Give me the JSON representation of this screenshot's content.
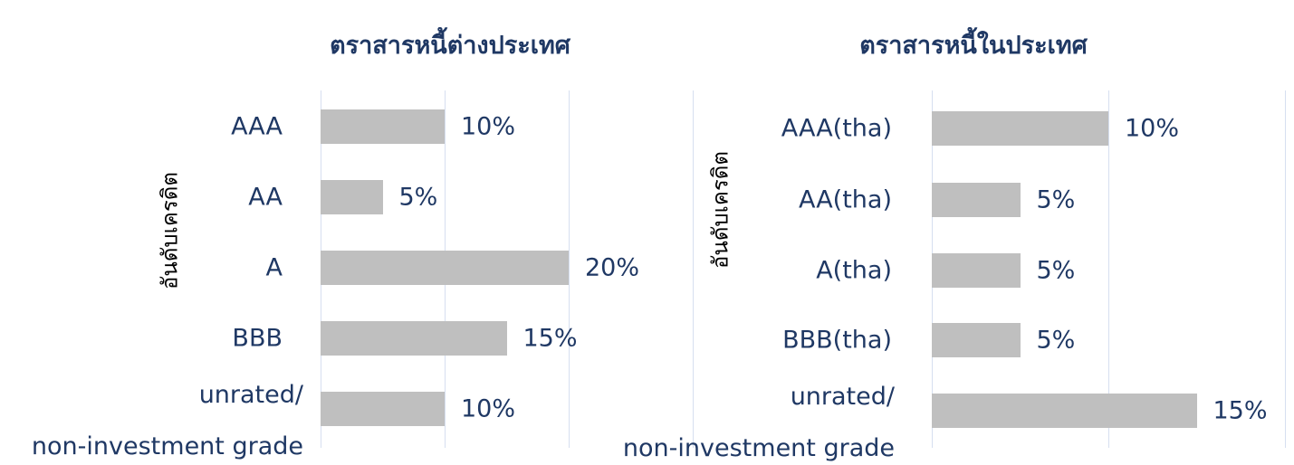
{
  "chart_data": [
    {
      "type": "bar",
      "orientation": "horizontal",
      "title": "ตราสารหนี้ต่างประเทศ",
      "y_label": "อันดับเครดิต",
      "categories": [
        "AAA",
        "AA",
        "A",
        "BBB",
        "unrated/\nnon-investment grade"
      ],
      "values": [
        10,
        5,
        20,
        15,
        10
      ],
      "value_labels": [
        "10%",
        "5%",
        "20%",
        "15%",
        "10%"
      ],
      "color": "#bfbfbf",
      "xlim": [
        0,
        30
      ],
      "xticks": [
        0,
        10,
        20,
        30
      ],
      "grid": true
    },
    {
      "type": "bar",
      "orientation": "horizontal",
      "title": "ตราสารหนี้ในประเทศ",
      "y_label": "อันดับเครดิต",
      "categories": [
        "AAA(tha)",
        "AA(tha)",
        "A(tha)",
        "BBB(tha)",
        "unrated/\nnon-investment grade"
      ],
      "values": [
        10,
        5,
        5,
        5,
        15
      ],
      "value_labels": [
        "10%",
        "5%",
        "5%",
        "5%",
        "15%"
      ],
      "color": "#bfbfbf",
      "xlim": [
        0,
        20
      ],
      "xticks": [
        0,
        10,
        20
      ],
      "grid": true
    }
  ]
}
